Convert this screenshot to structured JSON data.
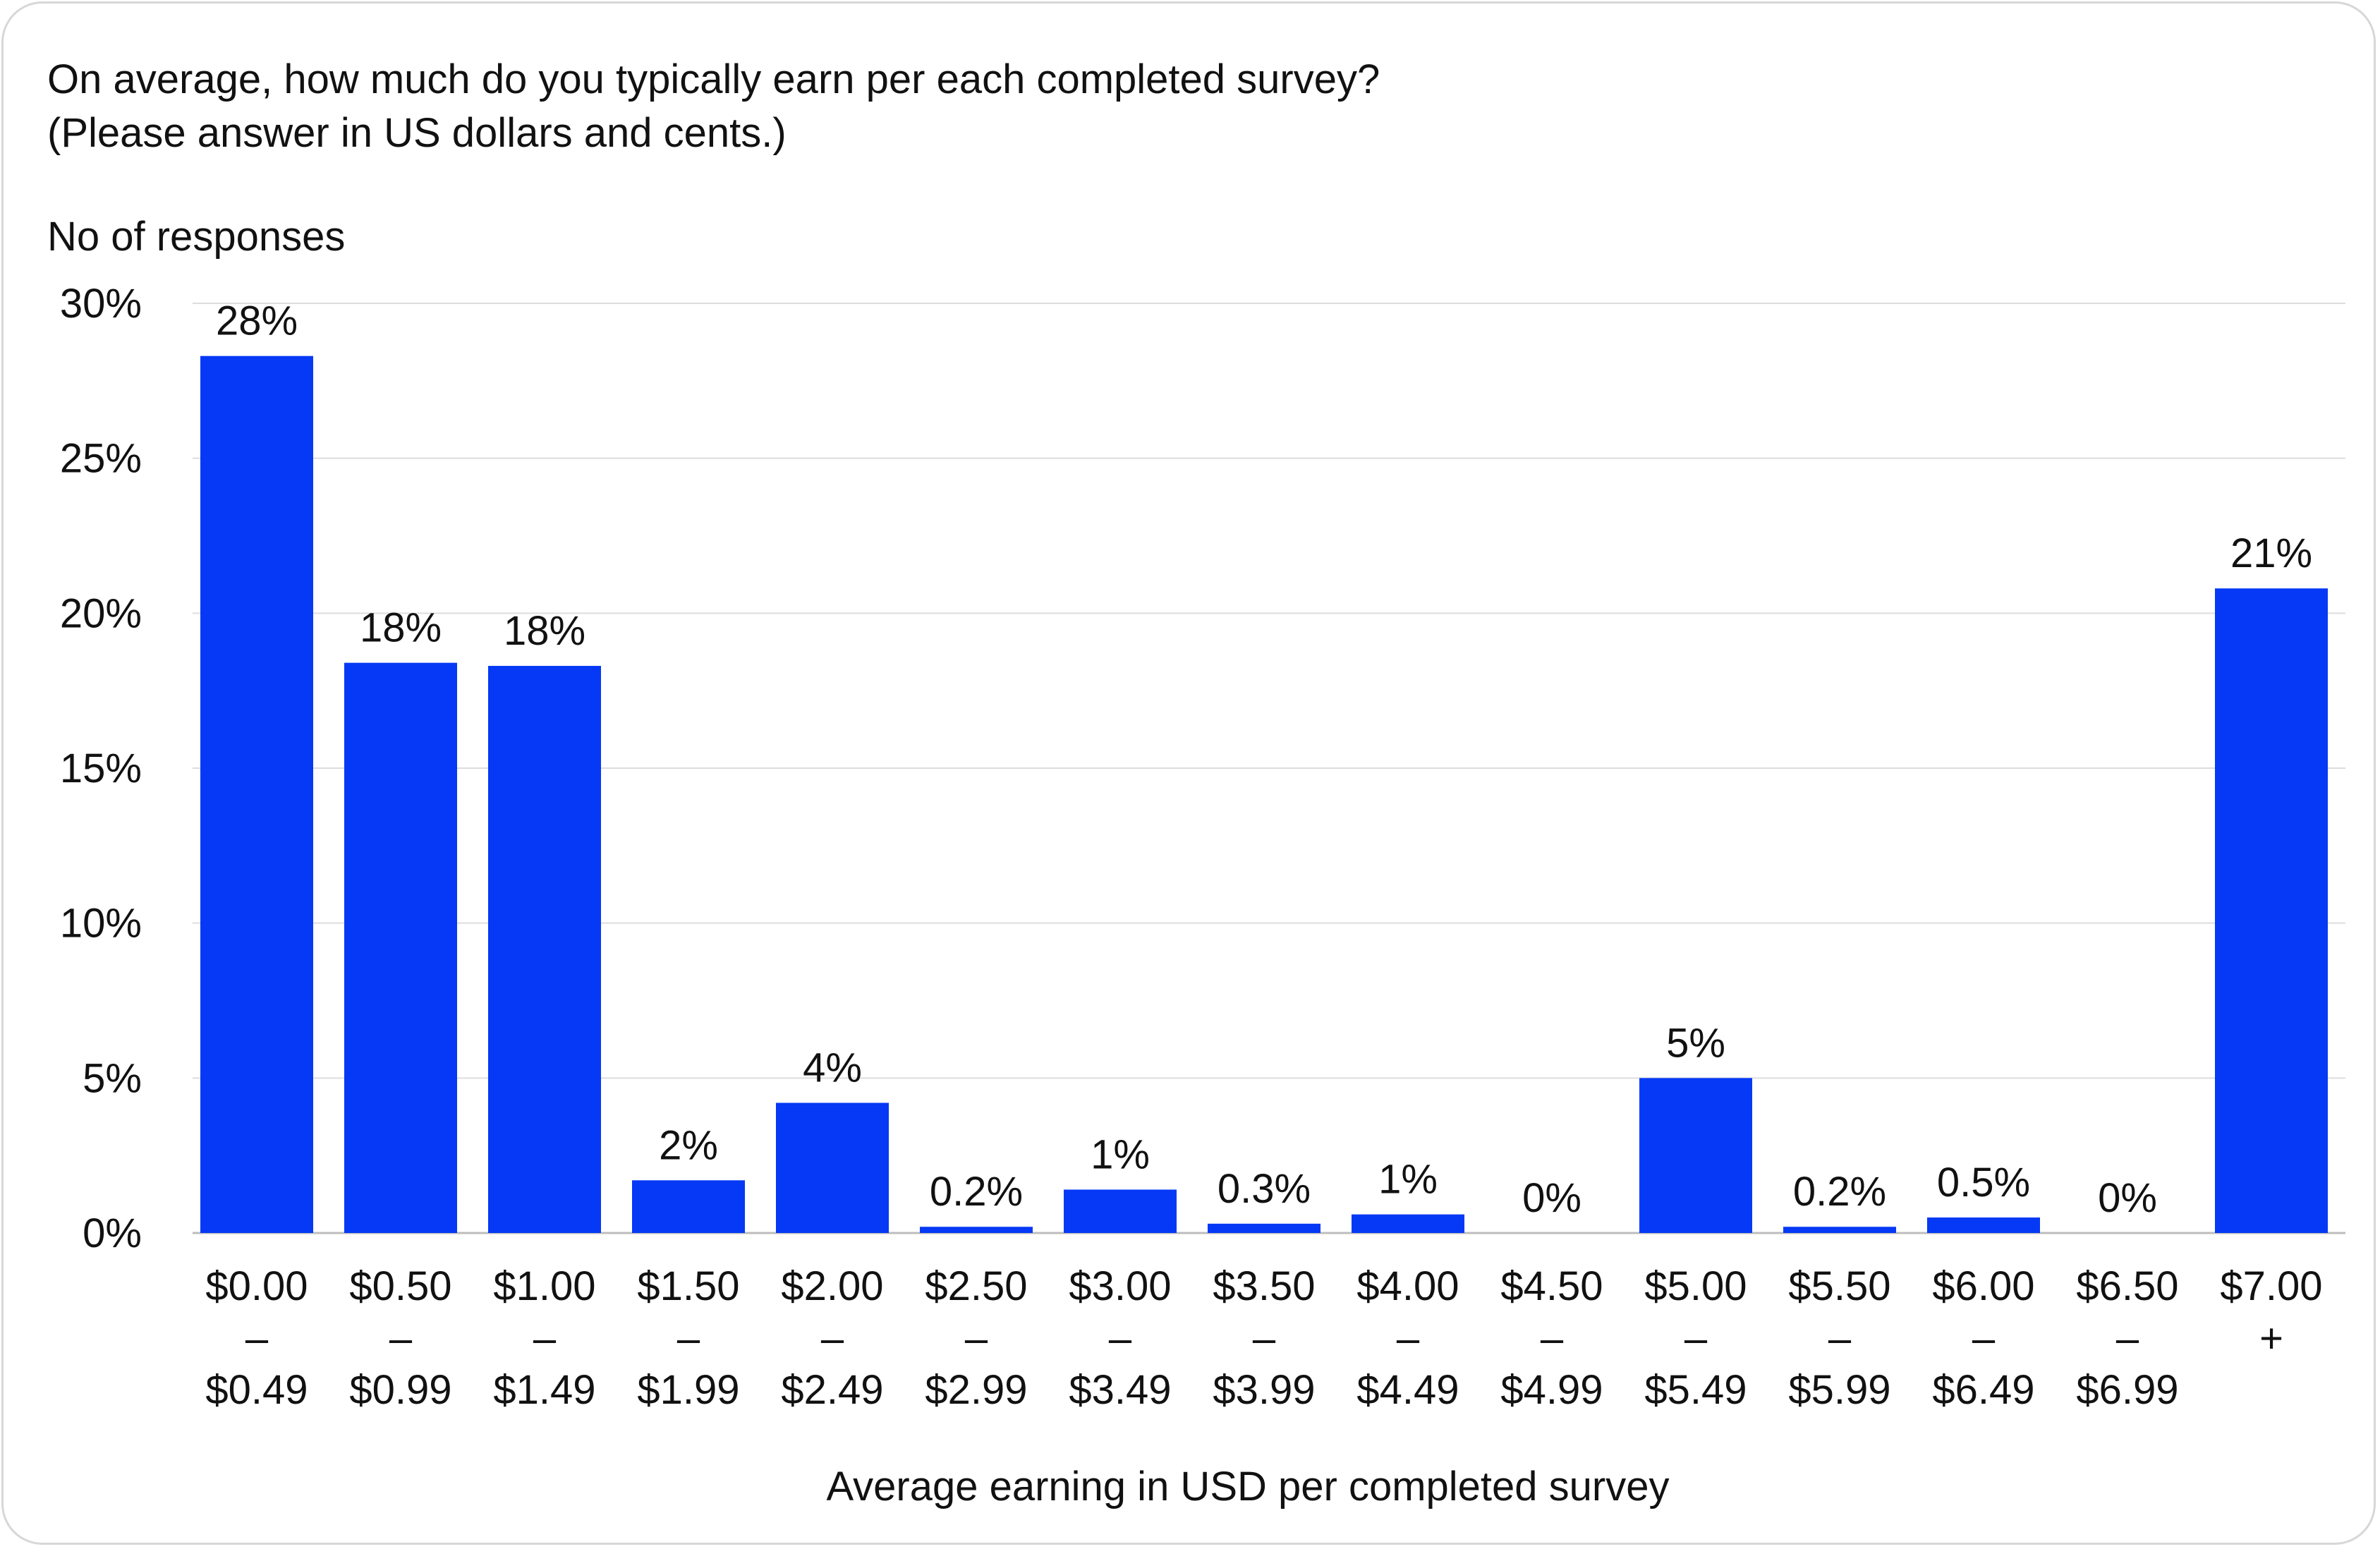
{
  "title_lines": [
    "On average, how much do you typically earn per each completed survey?",
    "(Please answer in US dollars and cents.)"
  ],
  "chart_data": {
    "type": "bar",
    "ylabel": "No of responses",
    "xlabel": "Average earning in USD per completed survey",
    "ylim": [
      0,
      30
    ],
    "yticks": [
      0,
      5,
      10,
      15,
      20,
      25,
      30
    ],
    "ytick_labels": [
      "0%",
      "5%",
      "10%",
      "15%",
      "20%",
      "25%",
      "30%"
    ],
    "grid": true,
    "bar_color": "#0539F5",
    "categories": [
      [
        "$0.00",
        "–",
        "$0.49"
      ],
      [
        "$0.50",
        "–",
        "$0.99"
      ],
      [
        "$1.00",
        "–",
        "$1.49"
      ],
      [
        "$1.50",
        "–",
        "$1.99"
      ],
      [
        "$2.00",
        "–",
        "$2.49"
      ],
      [
        "$2.50",
        "–",
        "$2.99"
      ],
      [
        "$3.00",
        "–",
        "$3.49"
      ],
      [
        "$3.50",
        "–",
        "$3.99"
      ],
      [
        "$4.00",
        "–",
        "$4.49"
      ],
      [
        "$4.50",
        "–",
        "$4.99"
      ],
      [
        "$5.00",
        "–",
        "$5.49"
      ],
      [
        "$5.50",
        "–",
        "$5.99"
      ],
      [
        "$6.00",
        "–",
        "$6.49"
      ],
      [
        "$6.50",
        "–",
        "$6.99"
      ],
      [
        "$7.00",
        "+"
      ]
    ],
    "values": [
      28.3,
      18.4,
      18.3,
      1.7,
      4.2,
      0.2,
      1.4,
      0.3,
      0.6,
      0,
      5.0,
      0.2,
      0.5,
      0,
      20.8
    ],
    "data_labels": [
      "28%",
      "18%",
      "18%",
      "2%",
      "4%",
      "0.2%",
      "1%",
      "0.3%",
      "1%",
      "0%",
      "5%",
      "0.2%",
      "0.5%",
      "0%",
      "21%"
    ]
  }
}
